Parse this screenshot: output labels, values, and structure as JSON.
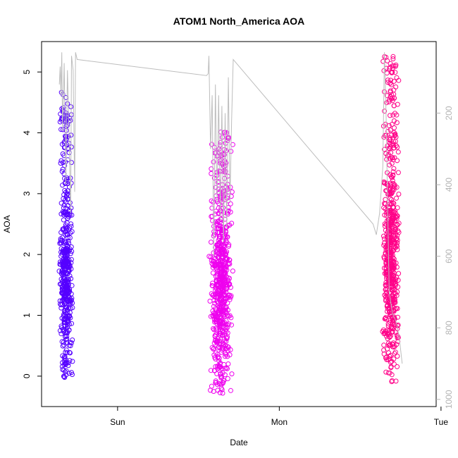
{
  "chart_data": {
    "type": "scatter",
    "title": "ATOM1 North_America AOA",
    "xlabel": "Date",
    "ylabel": "AOA",
    "x_ticks": [
      "Sun",
      "Mon",
      "Tue"
    ],
    "x_tick_values": [
      0.0,
      1.0,
      2.0
    ],
    "xlim": [
      -0.47,
      1.97
    ],
    "ylim": [
      -0.5,
      5.5
    ],
    "y_ticks": [
      0,
      1,
      2,
      3,
      4,
      5
    ],
    "y2_label": "",
    "y2_ticks": [
      200,
      400,
      600,
      800,
      1000
    ],
    "y2lim": [
      1020,
      0
    ],
    "clusters": [
      {
        "x_center": -0.32,
        "x_spread": 0.045,
        "y_min": -0.02,
        "y_max": 4.7,
        "y_mean": 1.55,
        "color": "#5500ff",
        "n": 480
      },
      {
        "x_center": 0.64,
        "x_spread": 0.075,
        "y_min": -0.28,
        "y_max": 4.1,
        "y_mean": 1.5,
        "color": "#ee00ee",
        "n": 650
      },
      {
        "x_center": 1.69,
        "x_spread": 0.055,
        "y_min": -0.1,
        "y_max": 5.3,
        "y_mean": 1.9,
        "color": "#ff0088",
        "n": 600
      }
    ],
    "pressure_line": {
      "color": "#bdbdbd",
      "points": [
        [
          -0.36,
          120
        ],
        [
          -0.355,
          70
        ],
        [
          -0.35,
          150
        ],
        [
          -0.345,
          30
        ],
        [
          -0.34,
          250
        ],
        [
          -0.33,
          60
        ],
        [
          -0.32,
          400
        ],
        [
          -0.31,
          80
        ],
        [
          -0.3,
          260
        ],
        [
          -0.29,
          480
        ],
        [
          -0.285,
          40
        ],
        [
          -0.275,
          80
        ],
        [
          -0.265,
          420
        ],
        [
          -0.26,
          30
        ],
        [
          -0.25,
          50
        ],
        [
          0.55,
          95
        ],
        [
          0.56,
          90
        ],
        [
          0.565,
          40
        ],
        [
          0.575,
          300
        ],
        [
          0.585,
          150
        ],
        [
          0.595,
          600
        ],
        [
          0.605,
          120
        ],
        [
          0.615,
          450
        ],
        [
          0.625,
          150
        ],
        [
          0.635,
          500
        ],
        [
          0.645,
          180
        ],
        [
          0.655,
          560
        ],
        [
          0.665,
          200
        ],
        [
          0.675,
          520
        ],
        [
          0.685,
          100
        ],
        [
          0.695,
          450
        ],
        [
          0.705,
          220
        ],
        [
          0.715,
          50
        ],
        [
          1.58,
          510
        ],
        [
          1.6,
          540
        ],
        [
          1.62,
          480
        ],
        [
          1.64,
          350
        ],
        [
          1.65,
          30
        ],
        [
          1.66,
          200
        ],
        [
          1.67,
          460
        ],
        [
          1.68,
          700
        ],
        [
          1.7,
          760
        ],
        [
          1.72,
          780
        ],
        [
          1.74,
          820
        ],
        [
          1.76,
          900
        ]
      ]
    }
  }
}
